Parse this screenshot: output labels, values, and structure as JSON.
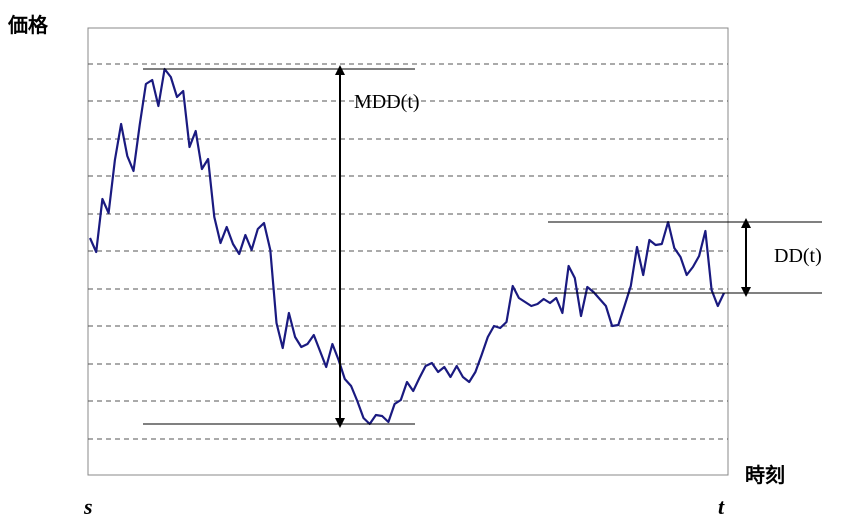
{
  "chart_data": {
    "type": "line",
    "y_label": "価格",
    "x_label": "時刻",
    "x_start": "s",
    "x_end": "t",
    "mdd_label": "MDD(t)",
    "dd_label": "DD(t)",
    "color": "#1a1a80",
    "grid": true,
    "ylim": [
      0,
      450
    ],
    "grid_levels": [
      37,
      75,
      112,
      150,
      187,
      225,
      262,
      300,
      337,
      375,
      412
    ],
    "values": [
      238,
      224,
      277,
      263,
      316,
      352,
      320,
      305,
      351,
      392,
      396,
      370,
      407,
      399,
      379,
      385,
      329,
      345,
      307,
      317,
      259,
      233,
      249,
      232,
      222,
      241,
      226,
      247,
      253,
      226,
      153,
      128,
      163,
      139,
      129,
      132,
      141,
      125,
      109,
      132,
      116,
      97,
      90,
      75,
      58,
      52,
      61,
      60,
      54,
      72,
      76,
      94,
      85,
      98,
      110,
      113,
      104,
      109,
      99,
      110,
      99,
      94,
      104,
      121,
      139,
      150,
      148,
      154,
      190,
      178,
      174,
      170,
      172,
      177,
      173,
      178,
      163,
      210,
      198,
      160,
      189,
      184,
      177,
      170,
      150,
      151,
      170,
      190,
      229,
      201,
      236,
      231,
      232,
      254,
      228,
      219,
      201,
      209,
      220,
      245,
      186,
      170,
      183
    ]
  }
}
